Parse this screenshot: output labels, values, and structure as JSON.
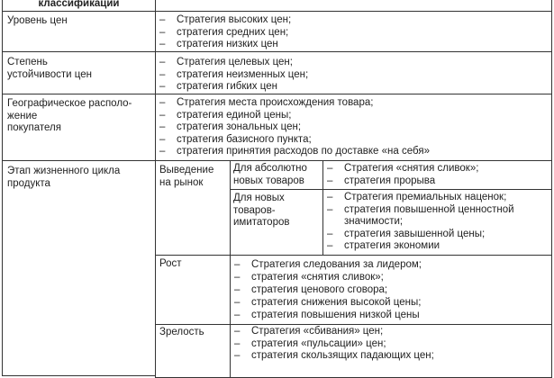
{
  "header": {
    "col1": "классификации"
  },
  "rows": [
    {
      "criterion": "Уровень цен",
      "items": [
        "Стратегия высоких цен;",
        "стратегия средних цен;",
        "стратегия низких цен"
      ]
    },
    {
      "criterion_lines": [
        "Степень",
        "устойчивости цен"
      ],
      "items": [
        "Стратегия целевых цен;",
        "стратегия неизменных цен;",
        "стратегия гибких цен"
      ]
    },
    {
      "criterion_lines": [
        "Географическое располо-",
        "жение",
        "покупателя"
      ],
      "items": [
        "Стратегия места происхождения товара;",
        "стратегия единой цены;",
        "стратегия зональных цен;",
        "стратегия базисного пункта;",
        "стратегия принятия расходов по доставке «на себя»"
      ]
    }
  ],
  "lifecycle": {
    "criterion_lines": [
      "Этап жизненного цикла",
      "продукта"
    ],
    "intro": {
      "stage_lines": [
        "Выведение",
        "на рынок"
      ],
      "absolute": {
        "label_lines": [
          "Для абсолютно",
          "новых товаров"
        ],
        "items": [
          "Стратегия «снятия сливок»;",
          "стратегия прорыва"
        ]
      },
      "imitators": {
        "label_lines": [
          "Для новых",
          "товаров-",
          "имитаторов"
        ],
        "items": [
          "Стратегия премиальных наценок;",
          "стратегия повышенной ценностной",
          "стратегия завышенной цены;",
          "стратегия экономии"
        ],
        "item2_cont": "значимости;"
      }
    },
    "growth": {
      "stage": "Рост",
      "items": [
        "Стратегия следования за лидером;",
        "стратегия «снятия сливок»;",
        "стратегия ценового сговора;",
        "стратегия снижения высокой цены;",
        "стратегия повышения низкой цены"
      ]
    },
    "maturity": {
      "stage": "Зрелость",
      "items": [
        "Стратегия «сбивания» цен;",
        "стратегия «пульсации» цен;",
        "стратегия скользящих падающих цен;"
      ]
    }
  }
}
